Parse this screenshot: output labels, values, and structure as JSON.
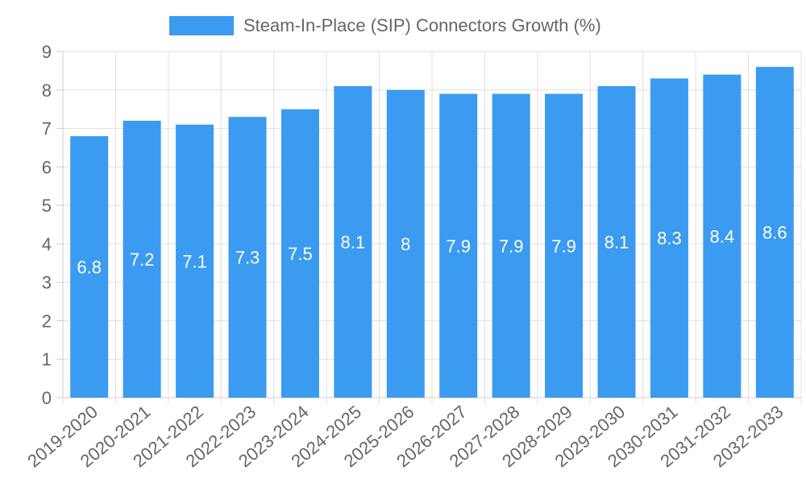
{
  "chart_data": {
    "type": "bar",
    "title": "",
    "xlabel": "",
    "ylabel": "",
    "categories": [
      "2019-2020",
      "2020-2021",
      "2021-2022",
      "2022-2023",
      "2023-2024",
      "2024-2025",
      "2025-2026",
      "2026-2027",
      "2027-2028",
      "2028-2029",
      "2029-2030",
      "2030-2031",
      "2031-2032",
      "2032-2033"
    ],
    "series": [
      {
        "name": "Steam-In-Place (SIP) Connectors Growth (%)",
        "values": [
          6.8,
          7.2,
          7.1,
          7.3,
          7.5,
          8.1,
          8,
          7.9,
          7.9,
          7.9,
          8.1,
          8.3,
          8.4,
          8.6
        ],
        "color": "#3a9bf0"
      }
    ],
    "ylim": [
      0,
      9
    ],
    "yticks": [
      0,
      1,
      2,
      3,
      4,
      5,
      6,
      7,
      8,
      9
    ],
    "grid": true,
    "legend_position": "top-center",
    "data_label_color": "#ffffff"
  }
}
